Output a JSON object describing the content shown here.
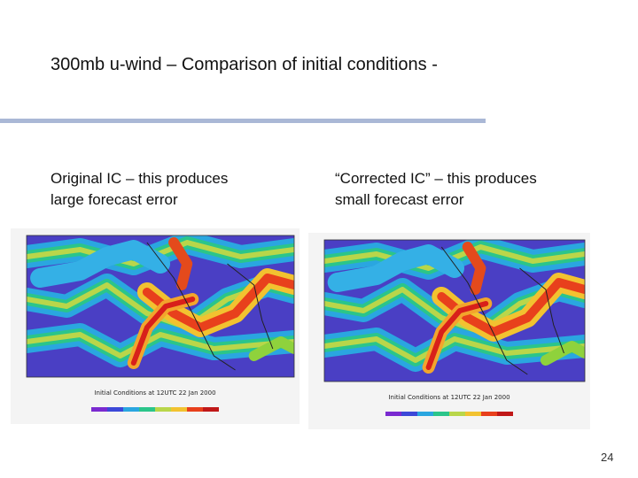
{
  "header": {
    "title": "300mb u-wind – Comparison of initial conditions -"
  },
  "panels": [
    {
      "caption": [
        "Original IC – this produces",
        "large forecast error"
      ],
      "map_caption": "Initial Conditions at 12UTC 22 Jan 2000"
    },
    {
      "caption": [
        "“Corrected IC” – this produces",
        "small forecast error"
      ],
      "map_caption": "Initial Conditions at 12UTC 22 Jan 2000"
    }
  ],
  "footer": {
    "page_number": "24"
  }
}
